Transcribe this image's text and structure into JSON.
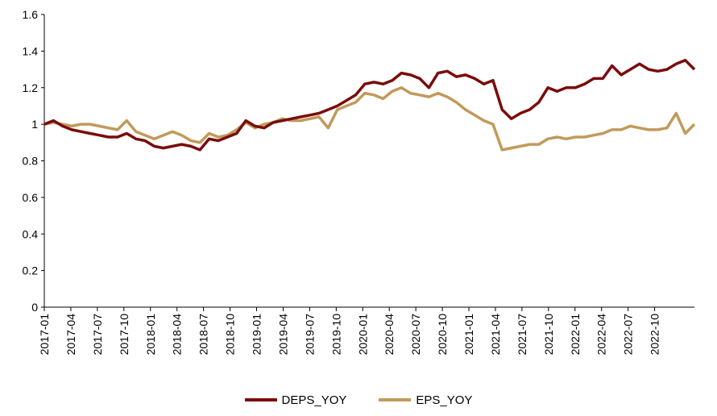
{
  "chart_data": {
    "type": "line",
    "title": "",
    "xlabel": "",
    "ylabel": "",
    "ylim": [
      0,
      1.6
    ],
    "yticks": [
      "0",
      "0.2",
      "0.4",
      "0.6",
      "0.8",
      "1",
      "1.2",
      "1.4",
      "1.6"
    ],
    "xticks": [
      "2017-01",
      "2017-04",
      "2017-07",
      "2017-10",
      "2018-01",
      "2018-04",
      "2018-07",
      "2018-10",
      "2019-01",
      "2019-04",
      "2019-07",
      "2019-10",
      "2020-01",
      "2020-04",
      "2020-07",
      "2020-10",
      "2021-01",
      "2021-04",
      "2021-07",
      "2021-10",
      "2022-01",
      "2022-04",
      "2022-07",
      "2022-10"
    ],
    "grid": false,
    "legend_position": "bottom",
    "x": [
      "2017-01",
      "2017-02",
      "2017-03",
      "2017-04",
      "2017-05",
      "2017-06",
      "2017-07",
      "2017-08",
      "2017-09",
      "2017-10",
      "2017-11",
      "2017-12",
      "2018-01",
      "2018-02",
      "2018-03",
      "2018-04",
      "2018-05",
      "2018-06",
      "2018-07",
      "2018-08",
      "2018-09",
      "2018-10",
      "2018-11",
      "2018-12",
      "2019-01",
      "2019-02",
      "2019-03",
      "2019-04",
      "2019-05",
      "2019-06",
      "2019-07",
      "2019-08",
      "2019-09",
      "2019-10",
      "2019-11",
      "2019-12",
      "2020-01",
      "2020-02",
      "2020-03",
      "2020-04",
      "2020-05",
      "2020-06",
      "2020-07",
      "2020-08",
      "2020-09",
      "2020-10",
      "2020-11",
      "2020-12",
      "2021-01",
      "2021-02",
      "2021-03",
      "2021-04",
      "2021-05",
      "2021-06",
      "2021-07",
      "2021-08",
      "2021-09",
      "2021-10",
      "2021-11",
      "2021-12",
      "2022-01",
      "2022-02",
      "2022-03",
      "2022-04",
      "2022-05",
      "2022-06",
      "2022-07",
      "2022-08",
      "2022-09",
      "2022-10",
      "2022-11",
      "2022-12"
    ],
    "series": [
      {
        "name": "DEPS_YOY",
        "color": "#7a0c0c",
        "values": [
          1.0,
          1.02,
          0.99,
          0.97,
          0.96,
          0.95,
          0.94,
          0.93,
          0.93,
          0.95,
          0.92,
          0.91,
          0.88,
          0.87,
          0.88,
          0.89,
          0.88,
          0.86,
          0.92,
          0.91,
          0.93,
          0.95,
          1.02,
          0.99,
          0.98,
          1.01,
          1.02,
          1.03,
          1.04,
          1.05,
          1.06,
          1.08,
          1.1,
          1.13,
          1.16,
          1.22,
          1.23,
          1.22,
          1.24,
          1.28,
          1.27,
          1.25,
          1.2,
          1.28,
          1.29,
          1.26,
          1.27,
          1.25,
          1.22,
          1.24,
          1.08,
          1.03,
          1.06,
          1.08,
          1.12,
          1.2,
          1.18,
          1.2,
          1.2,
          1.22,
          1.25,
          1.25,
          1.32,
          1.27,
          1.3,
          1.33,
          1.3,
          1.29,
          1.3,
          1.33,
          1.35,
          1.3
        ]
      },
      {
        "name": "EPS_YOY",
        "color": "#c19a5b",
        "values": [
          1.0,
          1.01,
          1.0,
          0.99,
          1.0,
          1.0,
          0.99,
          0.98,
          0.97,
          1.02,
          0.96,
          0.94,
          0.92,
          0.94,
          0.96,
          0.94,
          0.91,
          0.9,
          0.95,
          0.93,
          0.94,
          0.97,
          1.01,
          0.98,
          1.0,
          1.01,
          1.03,
          1.02,
          1.02,
          1.03,
          1.04,
          0.98,
          1.08,
          1.1,
          1.12,
          1.17,
          1.16,
          1.14,
          1.18,
          1.2,
          1.17,
          1.16,
          1.15,
          1.17,
          1.15,
          1.12,
          1.08,
          1.05,
          1.02,
          1.0,
          0.86,
          0.87,
          0.88,
          0.89,
          0.89,
          0.92,
          0.93,
          0.92,
          0.93,
          0.93,
          0.94,
          0.95,
          0.97,
          0.97,
          0.99,
          0.98,
          0.97,
          0.97,
          0.98,
          1.06,
          0.95,
          1.0
        ]
      }
    ]
  }
}
